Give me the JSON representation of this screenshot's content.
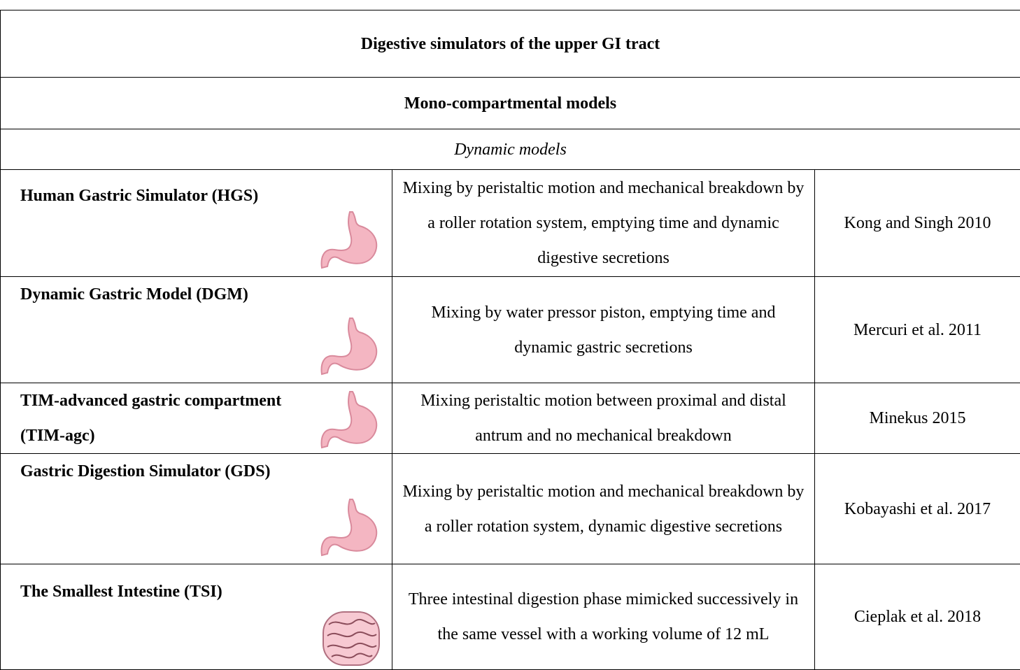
{
  "title": "Digestive simulators of the upper GI tract",
  "section": "Mono-compartmental models",
  "subsection": "Dynamic models",
  "rows": [
    {
      "name": "Human Gastric Simulator (HGS)",
      "description": "Mixing by peristaltic motion and mechanical breakdown by a roller rotation system, emptying time and dynamic digestive secretions",
      "reference": "Kong and Singh 2010"
    },
    {
      "name": "Dynamic Gastric Model (DGM)",
      "description": "Mixing by water pressor piston, emptying time and dynamic gastric secretions",
      "reference": "Mercuri et al. 2011"
    },
    {
      "name": "TIM-advanced gastric compartment (TIM-agc)",
      "description": "Mixing peristaltic motion between proximal and distal antrum and no mechanical breakdown",
      "reference": "Minekus 2015"
    },
    {
      "name": "Gastric Digestion Simulator (GDS)",
      "description": "Mixing by peristaltic motion and mechanical breakdown by a roller rotation system, dynamic digestive secretions",
      "reference": "Kobayashi et al. 2017"
    },
    {
      "name": "The Smallest Intestine (TSI)",
      "description": "Three intestinal digestion phase mimicked successively in the same vessel with a working volume of 12 mL",
      "reference": "Cieplak et al. 2018"
    }
  ]
}
